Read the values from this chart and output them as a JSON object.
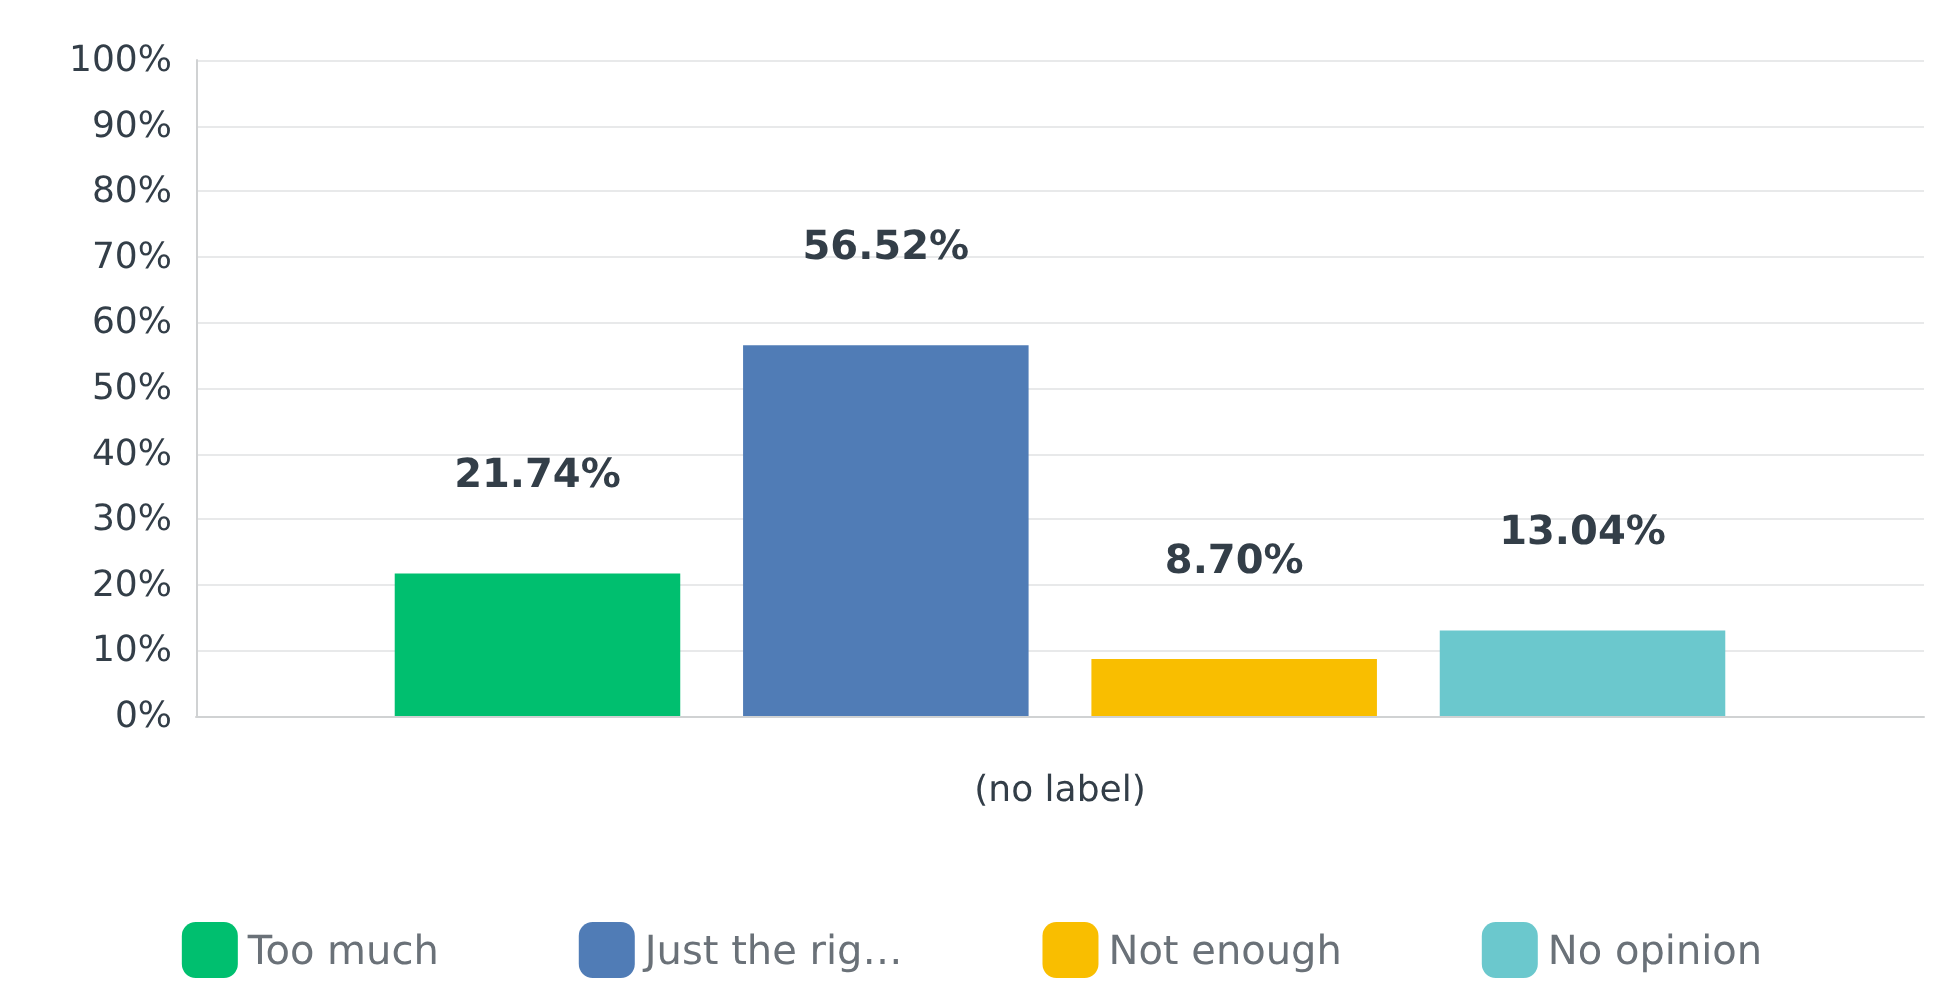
{
  "chart_data": {
    "type": "bar",
    "categories": [
      "(no label)"
    ],
    "series": [
      {
        "name": "Too much",
        "color": "#00bf6f",
        "values": [
          21.74
        ],
        "value_labels": [
          "21.74%"
        ]
      },
      {
        "name": "Just the rig…",
        "color": "#507cb6",
        "values": [
          56.52
        ],
        "value_labels": [
          "56.52%"
        ]
      },
      {
        "name": "Not enough",
        "color": "#f9be00",
        "values": [
          8.7
        ],
        "value_labels": [
          "8.70%"
        ]
      },
      {
        "name": "No opinion",
        "color": "#6bc8cd",
        "values": [
          13.04
        ],
        "value_labels": [
          "13.04%"
        ]
      }
    ],
    "ylim": [
      0,
      100
    ],
    "yticks": [
      {
        "value": 0,
        "label": "0%"
      },
      {
        "value": 10,
        "label": "10%"
      },
      {
        "value": 20,
        "label": "20%"
      },
      {
        "value": 30,
        "label": "30%"
      },
      {
        "value": 40,
        "label": "40%"
      },
      {
        "value": 50,
        "label": "50%"
      },
      {
        "value": 60,
        "label": "60%"
      },
      {
        "value": 70,
        "label": "70%"
      },
      {
        "value": 80,
        "label": "80%"
      },
      {
        "value": 90,
        "label": "90%"
      },
      {
        "value": 100,
        "label": "100%"
      }
    ],
    "grid": true,
    "legend": "bottom"
  }
}
